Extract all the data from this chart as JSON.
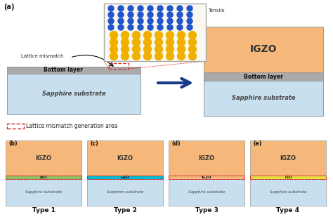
{
  "bg_color": "#ffffff",
  "sapphire_color": "#c8dff0",
  "igzo_color": "#f5b87a",
  "bottom_layer_color": "#aaaaaa",
  "izo_color": "#90c060",
  "gzo_color": "#00bcd4",
  "igzo_thin_color": "#f5b87a",
  "tzo_color": "#e8e040",
  "arrow_color": "#1a3a8a",
  "red_dashed_color": "#dd2222",
  "dot_blue": "#2255cc",
  "dot_yellow": "#f0b000",
  "inset_bg": "#f8f8f0",
  "label_a": "(a)",
  "label_b": "(b)",
  "label_c": "(c)",
  "label_d": "(d)",
  "label_e": "(e)",
  "type1": "Type 1",
  "type2": "Type 2",
  "type3": "Type 3",
  "type4": "Type 4",
  "tensile_label": "Tensile",
  "lattice_mismatch_label": "Lattice mismatch",
  "bottom_layer_label": "Bottom layer",
  "sapphire_label": "Sapphire substrate",
  "igzo_label": "IGZO",
  "legend_label": "Lattice mismatch generation area",
  "izo_label": "IZO",
  "gzo_label": "GZO",
  "igzo_thin_label": "IGZO",
  "tzo_label": "TZO"
}
